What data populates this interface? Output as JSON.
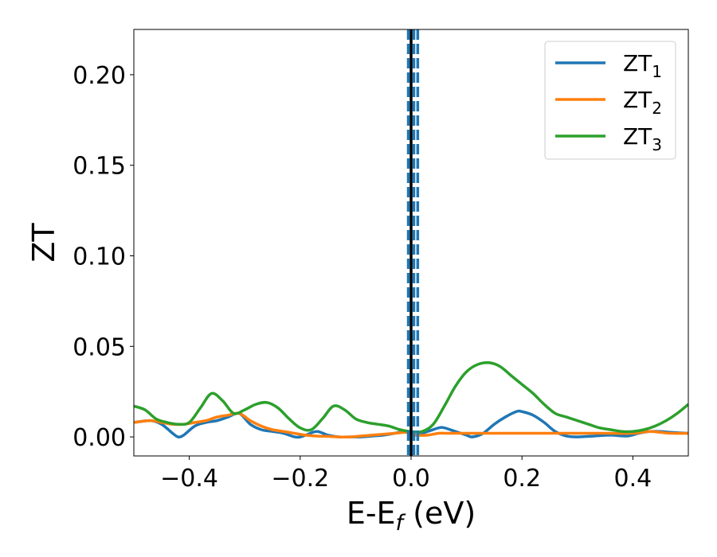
{
  "chart_data": {
    "type": "line",
    "title": "",
    "xlabel": "E-E",
    "xlabel_sub": "f",
    "xlabel_unit": " (eV)",
    "ylabel": "ZT",
    "xlim": [
      -0.5,
      0.5
    ],
    "ylim": [
      -0.0105,
      0.225
    ],
    "xticks": [
      -0.4,
      -0.2,
      0.0,
      0.2,
      0.4
    ],
    "xtick_labels": [
      "−0.4",
      "−0.2",
      "0.0",
      "0.2",
      "0.4"
    ],
    "yticks": [
      0.0,
      0.05,
      0.1,
      0.15,
      0.2
    ],
    "ytick_labels": [
      "0.00",
      "0.05",
      "0.10",
      "0.15",
      "0.20"
    ],
    "grid": false,
    "legend_position": "top-right",
    "vertical_lines": [
      {
        "x": 0.0,
        "style": "solid",
        "color": "#000000"
      },
      {
        "x": -0.005,
        "style": "dashed",
        "color": "#1f77b4"
      },
      {
        "x": 0.005,
        "style": "dashed",
        "color": "#1f77b4"
      },
      {
        "x": 0.012,
        "style": "dashed",
        "color": "#1f77b4"
      }
    ],
    "series": [
      {
        "name": "ZT",
        "sub": "1",
        "color": "#1f77b4",
        "x": [
          -0.5,
          -0.47,
          -0.45,
          -0.43,
          -0.42,
          -0.41,
          -0.39,
          -0.37,
          -0.35,
          -0.33,
          -0.31,
          -0.29,
          -0.27,
          -0.25,
          -0.23,
          -0.21,
          -0.2,
          -0.19,
          -0.17,
          -0.15,
          -0.13,
          -0.11,
          -0.09,
          -0.07,
          -0.05,
          -0.03,
          -0.01,
          0.0,
          0.01,
          0.03,
          0.05,
          0.06,
          0.08,
          0.1,
          0.11,
          0.13,
          0.15,
          0.17,
          0.19,
          0.2,
          0.22,
          0.24,
          0.26,
          0.28,
          0.3,
          0.33,
          0.36,
          0.39,
          0.41,
          0.43,
          0.45,
          0.47,
          0.5
        ],
        "y": [
          0.008,
          0.009,
          0.007,
          0.002,
          0.0,
          0.001,
          0.006,
          0.008,
          0.009,
          0.011,
          0.013,
          0.007,
          0.004,
          0.003,
          0.002,
          0.0,
          0.0,
          0.001,
          0.003,
          0.001,
          0.0,
          0.0,
          0.0,
          0.0005,
          0.001,
          0.002,
          0.003,
          0.002,
          0.001,
          0.003,
          0.005,
          0.005,
          0.003,
          0.001,
          0.0,
          0.002,
          0.007,
          0.011,
          0.014,
          0.014,
          0.012,
          0.008,
          0.003,
          0.0005,
          0.0,
          0.0005,
          0.001,
          0.0005,
          0.002,
          0.003,
          0.003,
          0.0025,
          0.002
        ]
      },
      {
        "name": "ZT",
        "sub": "2",
        "color": "#ff7f0e",
        "x": [
          -0.5,
          -0.47,
          -0.45,
          -0.43,
          -0.41,
          -0.39,
          -0.37,
          -0.35,
          -0.33,
          -0.31,
          -0.29,
          -0.27,
          -0.25,
          -0.23,
          -0.21,
          -0.19,
          -0.17,
          -0.15,
          -0.13,
          -0.11,
          -0.09,
          -0.07,
          -0.05,
          -0.03,
          -0.01,
          0.0,
          0.01,
          0.03,
          0.05,
          0.07,
          0.1,
          0.15,
          0.2,
          0.25,
          0.3,
          0.35,
          0.4,
          0.43,
          0.45,
          0.47,
          0.5
        ],
        "y": [
          0.008,
          0.009,
          0.008,
          0.007,
          0.007,
          0.008,
          0.009,
          0.011,
          0.012,
          0.013,
          0.009,
          0.006,
          0.004,
          0.003,
          0.002,
          0.001,
          0.0005,
          0.0003,
          0.0,
          0.0,
          0.0005,
          0.001,
          0.0015,
          0.002,
          0.0025,
          0.002,
          0.001,
          0.001,
          0.002,
          0.002,
          0.002,
          0.002,
          0.002,
          0.002,
          0.002,
          0.002,
          0.002,
          0.003,
          0.0025,
          0.002,
          0.002
        ]
      },
      {
        "name": "ZT",
        "sub": "3",
        "color": "#2ca02c",
        "x": [
          -0.5,
          -0.48,
          -0.46,
          -0.44,
          -0.42,
          -0.4,
          -0.38,
          -0.36,
          -0.34,
          -0.32,
          -0.3,
          -0.28,
          -0.26,
          -0.24,
          -0.22,
          -0.2,
          -0.18,
          -0.16,
          -0.14,
          -0.12,
          -0.1,
          -0.08,
          -0.06,
          -0.04,
          -0.02,
          0.0,
          0.02,
          0.04,
          0.06,
          0.08,
          0.1,
          0.12,
          0.14,
          0.16,
          0.18,
          0.2,
          0.22,
          0.24,
          0.26,
          0.28,
          0.3,
          0.32,
          0.34,
          0.36,
          0.38,
          0.4,
          0.42,
          0.44,
          0.46,
          0.48,
          0.5
        ],
        "y": [
          0.017,
          0.015,
          0.01,
          0.008,
          0.007,
          0.008,
          0.016,
          0.024,
          0.02,
          0.013,
          0.015,
          0.018,
          0.019,
          0.016,
          0.01,
          0.005,
          0.004,
          0.01,
          0.017,
          0.015,
          0.01,
          0.008,
          0.007,
          0.006,
          0.004,
          0.003,
          0.003,
          0.007,
          0.017,
          0.028,
          0.036,
          0.04,
          0.041,
          0.039,
          0.034,
          0.029,
          0.024,
          0.018,
          0.013,
          0.011,
          0.009,
          0.007,
          0.005,
          0.004,
          0.003,
          0.003,
          0.004,
          0.006,
          0.009,
          0.013,
          0.018
        ]
      }
    ]
  }
}
